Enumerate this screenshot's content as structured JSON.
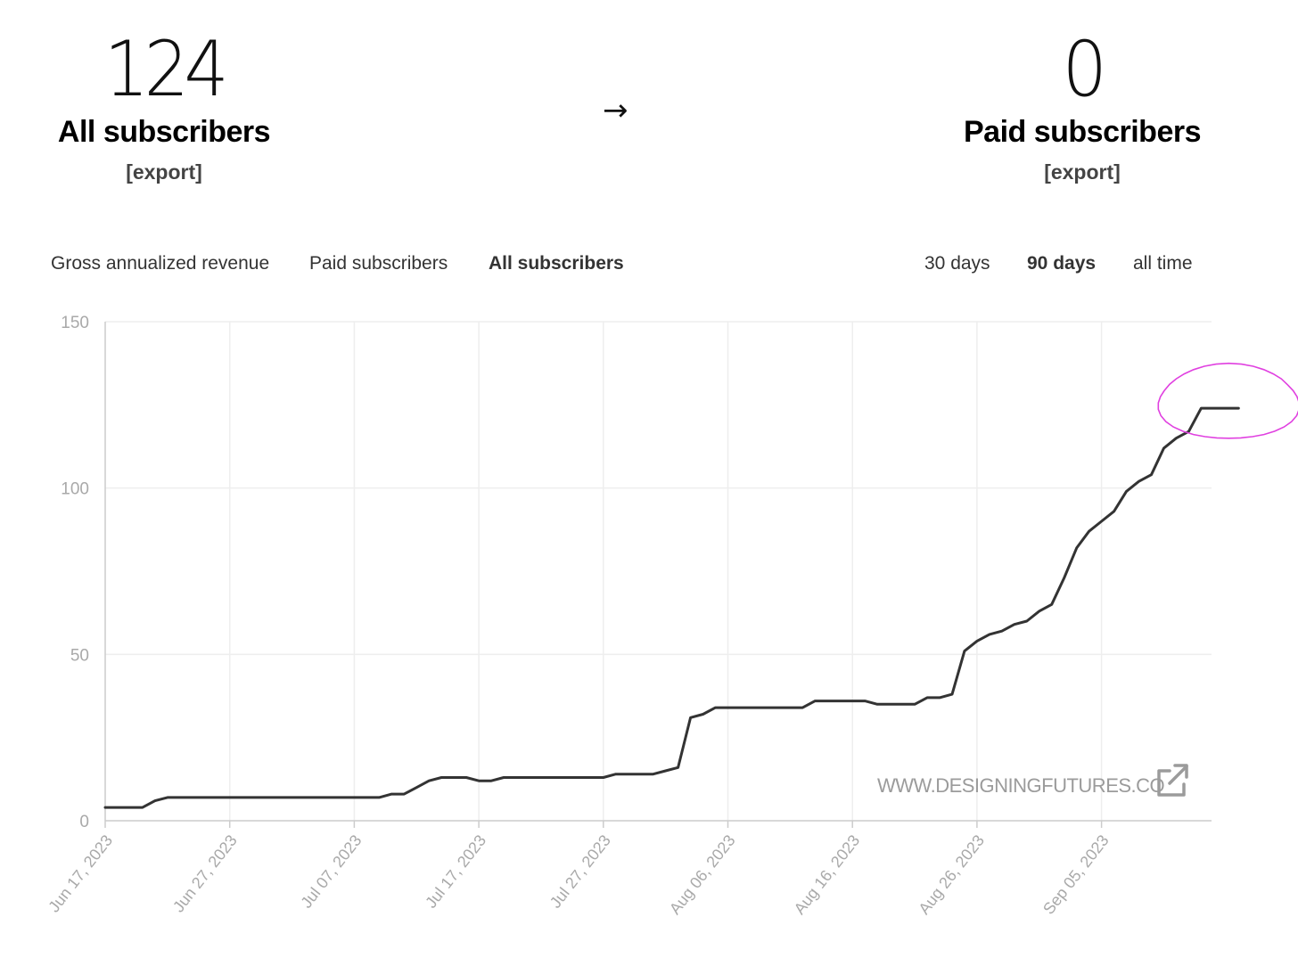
{
  "summary": {
    "all_subscribers": {
      "value": "124",
      "label": "All subscribers",
      "export_label": "[export]"
    },
    "arrow": "→",
    "paid_subscribers": {
      "value": "0",
      "label": "Paid subscribers",
      "export_label": "[export]"
    }
  },
  "metric_tabs": [
    {
      "label": "Gross annualized revenue",
      "active": false
    },
    {
      "label": "Paid subscribers",
      "active": false
    },
    {
      "label": "All subscribers",
      "active": true
    }
  ],
  "range_tabs": [
    {
      "label": "30 days",
      "active": false
    },
    {
      "label": "90 days",
      "active": true
    },
    {
      "label": "all time",
      "active": false
    }
  ],
  "colors": {
    "line": "#333333",
    "grid": "#eeeeee",
    "highlight": "#e040e0",
    "tick_text": "#a9a9a9"
  },
  "watermark": {
    "text": "WWW.DESIGNINGFUTURES.CO",
    "icon": "external-link-icon"
  },
  "chart_data": {
    "type": "line",
    "x_start": "2023-06-17",
    "x_tick_labels": [
      "Jun 17, 2023",
      "Jun 27, 2023",
      "Jul 07, 2023",
      "Jul 17, 2023",
      "Jul 27, 2023",
      "Aug 06, 2023",
      "Aug 16, 2023",
      "Aug 26, 2023",
      "Sep 05, 2023"
    ],
    "ylim": [
      0,
      150
    ],
    "y_ticks": [
      0,
      50,
      100,
      150
    ],
    "grid": true,
    "series": [
      {
        "values": [
          4,
          4,
          4,
          4,
          6,
          7,
          7,
          7,
          7,
          7,
          7,
          7,
          7,
          7,
          7,
          7,
          7,
          7,
          7,
          7,
          7,
          7,
          7,
          8,
          8,
          10,
          12,
          13,
          13,
          13,
          12,
          12,
          13,
          13,
          13,
          13,
          13,
          13,
          13,
          13,
          13,
          14,
          14,
          14,
          14,
          15,
          16,
          31,
          32,
          34,
          34,
          34,
          34,
          34,
          34,
          34,
          34,
          36,
          36,
          36,
          36,
          36,
          35,
          35,
          35,
          35,
          37,
          37,
          38,
          51,
          54,
          56,
          57,
          59,
          60,
          63,
          65,
          73,
          82,
          87,
          90,
          93,
          99,
          102,
          104,
          112,
          115,
          117,
          124,
          124,
          124,
          124
        ]
      }
    ],
    "annotation": {
      "type": "circle",
      "around_values": [
        124,
        124,
        124,
        124
      ]
    }
  }
}
